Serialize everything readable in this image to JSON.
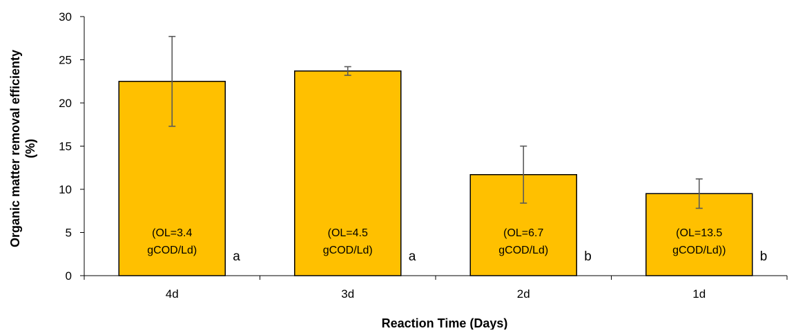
{
  "chart_data": {
    "type": "bar",
    "title": "",
    "xlabel": "Reaction Time (Days)",
    "ylabel": "Organic matter removal efficienty (%)",
    "ylabel_lines": [
      "Organic matter removal efficienty",
      "(%)"
    ],
    "ylim": [
      0,
      30
    ],
    "yticks": [
      0,
      5,
      10,
      15,
      20,
      25,
      30
    ],
    "grid": false,
    "legend": "none",
    "categories": [
      "4d",
      "3d",
      "2d",
      "1d"
    ],
    "series": [
      {
        "values": [
          22.5,
          23.7,
          11.7,
          9.5
        ],
        "error": [
          5.2,
          0.5,
          3.3,
          1.7
        ]
      }
    ],
    "bar_labels": [
      [
        "(OL=3.4",
        "gCOD/Ld)"
      ],
      [
        "(OL=4.5",
        "gCOD/Ld)"
      ],
      [
        "(OL=6.7",
        "gCOD/Ld)"
      ],
      [
        "(OL=13.5",
        "gCOD/Ld))"
      ]
    ],
    "significance_letters": [
      "a",
      "a",
      "b",
      "b"
    ],
    "colors": {
      "bar_fill": "#FFC000",
      "bar_stroke": "#000000",
      "error_bar": "#595959",
      "axis": "#000000"
    }
  }
}
